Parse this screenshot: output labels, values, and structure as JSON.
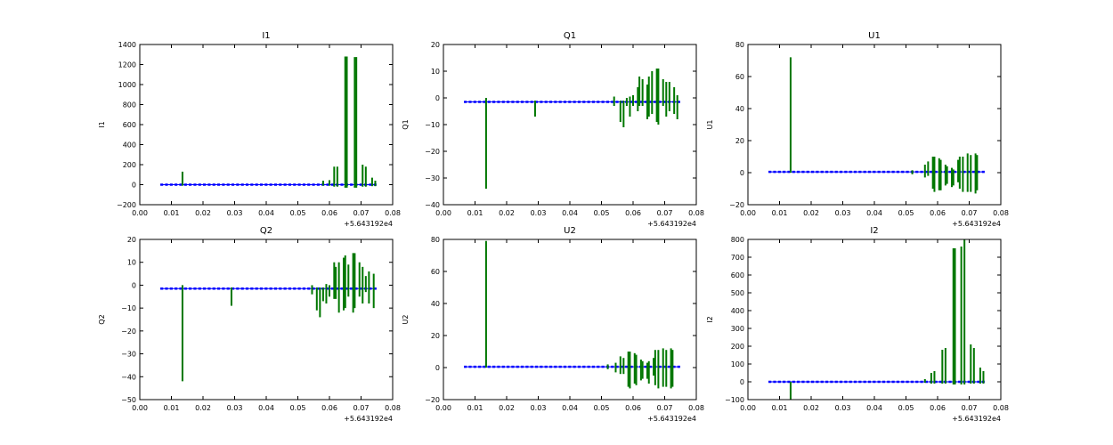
{
  "colors": {
    "series_main": "#007700",
    "series_base": "#0000ff",
    "axes": "#000000",
    "background": "#ffffff"
  },
  "chart_data": [
    {
      "type": "line",
      "title": "I1",
      "ylabel": "I1",
      "xlabel": "",
      "xlim": [
        0.0,
        0.08
      ],
      "ylim": [
        -200,
        1400
      ],
      "xticks": [
        "0.00",
        "0.01",
        "0.02",
        "0.03",
        "0.04",
        "0.05",
        "0.06",
        "0.07",
        "0.08"
      ],
      "yticks": [
        "−200",
        "0",
        "200",
        "400",
        "600",
        "800",
        "1000",
        "1200",
        "1400"
      ],
      "x_offset_label": "+5.643192e4",
      "grid": false,
      "series": [
        {
          "color": "#0000ff",
          "style": "baseline",
          "x_range": [
            0.0065,
            0.0745
          ],
          "value": 0
        },
        {
          "color": "#007700",
          "style": "spikes",
          "data": [
            [
              0.0135,
              -10,
              130
            ],
            [
              0.058,
              -10,
              40
            ],
            [
              0.06,
              -10,
              45
            ],
            [
              0.0615,
              -20,
              180
            ],
            [
              0.0625,
              -20,
              180
            ],
            [
              0.065,
              -30,
              1280
            ],
            [
              0.0655,
              -30,
              1280
            ],
            [
              0.068,
              -30,
              1275
            ],
            [
              0.0685,
              -30,
              1275
            ],
            [
              0.0705,
              -20,
              200
            ],
            [
              0.0715,
              -20,
              180
            ],
            [
              0.0735,
              -15,
              70
            ],
            [
              0.0745,
              -15,
              40
            ]
          ]
        }
      ]
    },
    {
      "type": "line",
      "title": "Q1",
      "ylabel": "Q1",
      "xlabel": "",
      "xlim": [
        0.0,
        0.08
      ],
      "ylim": [
        -40,
        20
      ],
      "xticks": [
        "0.00",
        "0.01",
        "0.02",
        "0.03",
        "0.04",
        "0.05",
        "0.06",
        "0.07",
        "0.08"
      ],
      "yticks": [
        "−40",
        "−30",
        "−20",
        "−10",
        "0",
        "10",
        "20"
      ],
      "x_offset_label": "+5.643192e4",
      "grid": false,
      "series": [
        {
          "color": "#0000ff",
          "style": "baseline",
          "x_range": [
            0.0065,
            0.0745
          ],
          "value": -1.5
        },
        {
          "color": "#007700",
          "style": "spikes",
          "data": [
            [
              0.0135,
              -34,
              0
            ],
            [
              0.029,
              -7,
              -1
            ],
            [
              0.054,
              -3,
              0.5
            ],
            [
              0.056,
              -9,
              -1
            ],
            [
              0.057,
              -11,
              -1
            ],
            [
              0.058,
              -3,
              0
            ],
            [
              0.059,
              -7,
              0.5
            ],
            [
              0.06,
              -3,
              1
            ],
            [
              0.0615,
              -5,
              4
            ],
            [
              0.062,
              -3,
              8
            ],
            [
              0.063,
              -3,
              7
            ],
            [
              0.0645,
              -8,
              5
            ],
            [
              0.065,
              -7,
              8
            ],
            [
              0.066,
              -6,
              10
            ],
            [
              0.0675,
              -9,
              11
            ],
            [
              0.068,
              -10,
              11
            ],
            [
              0.0695,
              -3,
              7
            ],
            [
              0.0705,
              -7,
              6
            ],
            [
              0.0715,
              -5,
              6
            ],
            [
              0.073,
              -6,
              4
            ],
            [
              0.074,
              -8,
              1
            ]
          ]
        }
      ]
    },
    {
      "type": "line",
      "title": "U1",
      "ylabel": "U1",
      "xlabel": "",
      "xlim": [
        0.0,
        0.08
      ],
      "ylim": [
        -20,
        80
      ],
      "xticks": [
        "0.00",
        "0.01",
        "0.02",
        "0.03",
        "0.04",
        "0.05",
        "0.06",
        "0.07",
        "0.08"
      ],
      "yticks": [
        "−20",
        "0",
        "20",
        "40",
        "60",
        "80"
      ],
      "x_offset_label": "+5.643192e4",
      "grid": false,
      "series": [
        {
          "color": "#0000ff",
          "style": "baseline",
          "x_range": [
            0.0065,
            0.0745
          ],
          "value": 0.5
        },
        {
          "color": "#007700",
          "style": "spikes",
          "data": [
            [
              0.0135,
              0,
              72
            ],
            [
              0.052,
              -1,
              1.5
            ],
            [
              0.056,
              -3,
              5
            ],
            [
              0.057,
              -2,
              7
            ],
            [
              0.0585,
              -10,
              10
            ],
            [
              0.059,
              -12,
              10
            ],
            [
              0.0605,
              -11,
              9
            ],
            [
              0.061,
              -11,
              8
            ],
            [
              0.0625,
              -8,
              5
            ],
            [
              0.063,
              -7,
              4
            ],
            [
              0.0645,
              -9,
              3
            ],
            [
              0.065,
              -8,
              2
            ],
            [
              0.0665,
              -6,
              8
            ],
            [
              0.067,
              -10,
              10
            ],
            [
              0.068,
              -12,
              10
            ],
            [
              0.0695,
              -12,
              12
            ],
            [
              0.0705,
              -12,
              11
            ],
            [
              0.072,
              -13,
              12
            ],
            [
              0.0725,
              -11,
              11
            ]
          ]
        }
      ]
    },
    {
      "type": "line",
      "title": "Q2",
      "ylabel": "Q2",
      "xlabel": "",
      "xlim": [
        0.0,
        0.08
      ],
      "ylim": [
        -50,
        20
      ],
      "xticks": [
        "0.00",
        "0.01",
        "0.02",
        "0.03",
        "0.04",
        "0.05",
        "0.06",
        "0.07",
        "0.08"
      ],
      "yticks": [
        "−50",
        "−40",
        "−30",
        "−20",
        "−10",
        "0",
        "10",
        "20"
      ],
      "x_offset_label": "+5.643192e4",
      "grid": false,
      "series": [
        {
          "color": "#0000ff",
          "style": "baseline",
          "x_range": [
            0.0065,
            0.0745
          ],
          "value": -1.5
        },
        {
          "color": "#007700",
          "style": "spikes",
          "data": [
            [
              0.0135,
              -42,
              0
            ],
            [
              0.029,
              -9,
              -1
            ],
            [
              0.0545,
              -4,
              0
            ],
            [
              0.056,
              -11,
              -1
            ],
            [
              0.057,
              -14,
              -1
            ],
            [
              0.058,
              -7,
              -1
            ],
            [
              0.059,
              -8,
              0.5
            ],
            [
              0.06,
              -5,
              0
            ],
            [
              0.0615,
              -6,
              10
            ],
            [
              0.062,
              -6,
              8
            ],
            [
              0.063,
              -12,
              10
            ],
            [
              0.0645,
              -11,
              12
            ],
            [
              0.065,
              -10,
              13
            ],
            [
              0.066,
              -5,
              9
            ],
            [
              0.0675,
              -12,
              14
            ],
            [
              0.068,
              -10,
              14
            ],
            [
              0.0695,
              -5,
              10
            ],
            [
              0.0705,
              -8,
              8
            ],
            [
              0.0715,
              -3,
              4
            ],
            [
              0.0725,
              -8,
              6
            ],
            [
              0.074,
              -10,
              5
            ]
          ]
        }
      ]
    },
    {
      "type": "line",
      "title": "U2",
      "ylabel": "U2",
      "xlabel": "",
      "xlim": [
        0.0,
        0.08
      ],
      "ylim": [
        -20,
        80
      ],
      "xticks": [
        "0.00",
        "0.01",
        "0.02",
        "0.03",
        "0.04",
        "0.05",
        "0.06",
        "0.07",
        "0.08"
      ],
      "yticks": [
        "−20",
        "0",
        "20",
        "40",
        "60",
        "80"
      ],
      "x_offset_label": "+5.643192e4",
      "grid": false,
      "series": [
        {
          "color": "#0000ff",
          "style": "baseline",
          "x_range": [
            0.0065,
            0.0745
          ],
          "value": 0.5
        },
        {
          "color": "#007700",
          "style": "spikes",
          "data": [
            [
              0.0135,
              0,
              79
            ],
            [
              0.052,
              -1,
              2
            ],
            [
              0.0545,
              -3,
              3
            ],
            [
              0.056,
              -4,
              7
            ],
            [
              0.057,
              -4,
              6
            ],
            [
              0.0585,
              -12,
              10
            ],
            [
              0.059,
              -13,
              10
            ],
            [
              0.0605,
              -10,
              9
            ],
            [
              0.061,
              -11,
              8
            ],
            [
              0.0625,
              -8,
              5
            ],
            [
              0.063,
              -7,
              4
            ],
            [
              0.0645,
              -7,
              3
            ],
            [
              0.065,
              -10,
              4
            ],
            [
              0.0665,
              -5,
              6
            ],
            [
              0.067,
              -11,
              11
            ],
            [
              0.068,
              -13,
              11
            ],
            [
              0.0695,
              -12,
              12
            ],
            [
              0.0705,
              -12,
              11
            ],
            [
              0.072,
              -13,
              12
            ],
            [
              0.0725,
              -12,
              11
            ]
          ]
        }
      ]
    },
    {
      "type": "line",
      "title": "I2",
      "ylabel": "I2",
      "xlabel": "",
      "xlim": [
        0.0,
        0.08
      ],
      "ylim": [
        -100,
        800
      ],
      "xticks": [
        "0.00",
        "0.01",
        "0.02",
        "0.03",
        "0.04",
        "0.05",
        "0.06",
        "0.07",
        "0.08"
      ],
      "yticks": [
        "−100",
        "0",
        "100",
        "200",
        "300",
        "400",
        "500",
        "600",
        "700",
        "800"
      ],
      "x_offset_label": "+5.643192e4",
      "grid": false,
      "series": [
        {
          "color": "#0000ff",
          "style": "baseline",
          "x_range": [
            0.0065,
            0.0745
          ],
          "value": 0
        },
        {
          "color": "#007700",
          "style": "spikes",
          "data": [
            [
              0.0135,
              -100,
              0
            ],
            [
              0.056,
              -5,
              15
            ],
            [
              0.058,
              -10,
              50
            ],
            [
              0.059,
              -10,
              60
            ],
            [
              0.0615,
              -10,
              180
            ],
            [
              0.0625,
              -10,
              190
            ],
            [
              0.065,
              -15,
              750
            ],
            [
              0.0655,
              -15,
              750
            ],
            [
              0.0675,
              -15,
              760
            ],
            [
              0.0685,
              -15,
              800
            ],
            [
              0.0705,
              -10,
              210
            ],
            [
              0.0715,
              -10,
              190
            ],
            [
              0.0735,
              -10,
              80
            ],
            [
              0.0745,
              -10,
              60
            ]
          ]
        }
      ]
    }
  ]
}
